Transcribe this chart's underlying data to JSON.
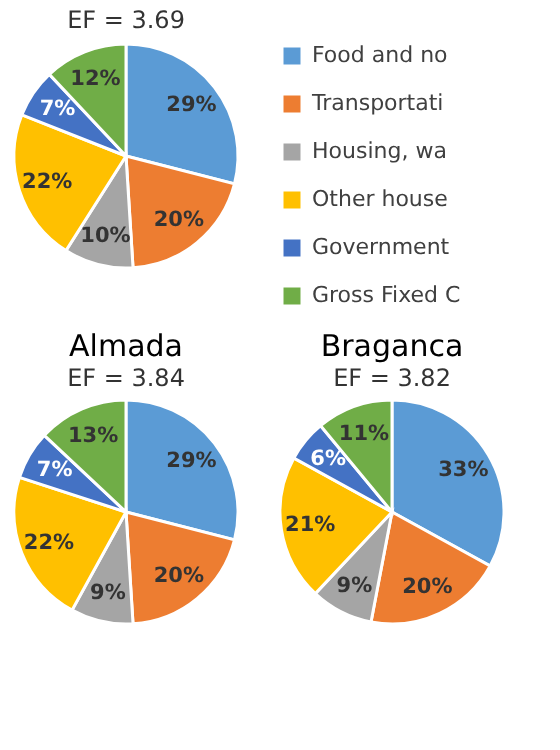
{
  "chart_data": [
    {
      "type": "pie",
      "subtitle": "EF = 3.69",
      "categories": [
        "Food and no",
        "Transportati",
        "Housing, wa",
        "Other house",
        "Government",
        "Gross Fixed C"
      ],
      "values": [
        29,
        20,
        10,
        22,
        7,
        12
      ],
      "value_labels": [
        "29%",
        "20%",
        "10%",
        "22%",
        "7%",
        "12%"
      ],
      "colors": [
        "#5b9bd5",
        "#ed7d31",
        "#a5a5a5",
        "#ffc000",
        "#4472c4",
        "#70ad47"
      ],
      "legend": "right"
    },
    {
      "type": "pie",
      "title": "Almada",
      "subtitle": "EF = 3.84",
      "categories": [
        null,
        null,
        null,
        null,
        null,
        null
      ],
      "values": [
        29,
        20,
        9,
        22,
        7,
        13
      ],
      "value_labels": [
        "29%",
        "20%",
        "9%",
        "22%",
        "7%",
        "13%"
      ],
      "colors": [
        "#5b9bd5",
        "#ed7d31",
        "#a5a5a5",
        "#ffc000",
        "#4472c4",
        "#70ad47"
      ]
    },
    {
      "type": "pie",
      "title": "Braganca",
      "subtitle": "EF = 3.82",
      "categories": [
        null,
        null,
        null,
        null,
        null,
        null
      ],
      "values": [
        33,
        20,
        9,
        21,
        6,
        11
      ],
      "value_labels": [
        "33%",
        "20%",
        "9%",
        "21%",
        "6%",
        "11%"
      ],
      "colors": [
        "#5b9bd5",
        "#ed7d31",
        "#a5a5a5",
        "#ffc000",
        "#4472c4",
        "#70ad47"
      ]
    }
  ]
}
